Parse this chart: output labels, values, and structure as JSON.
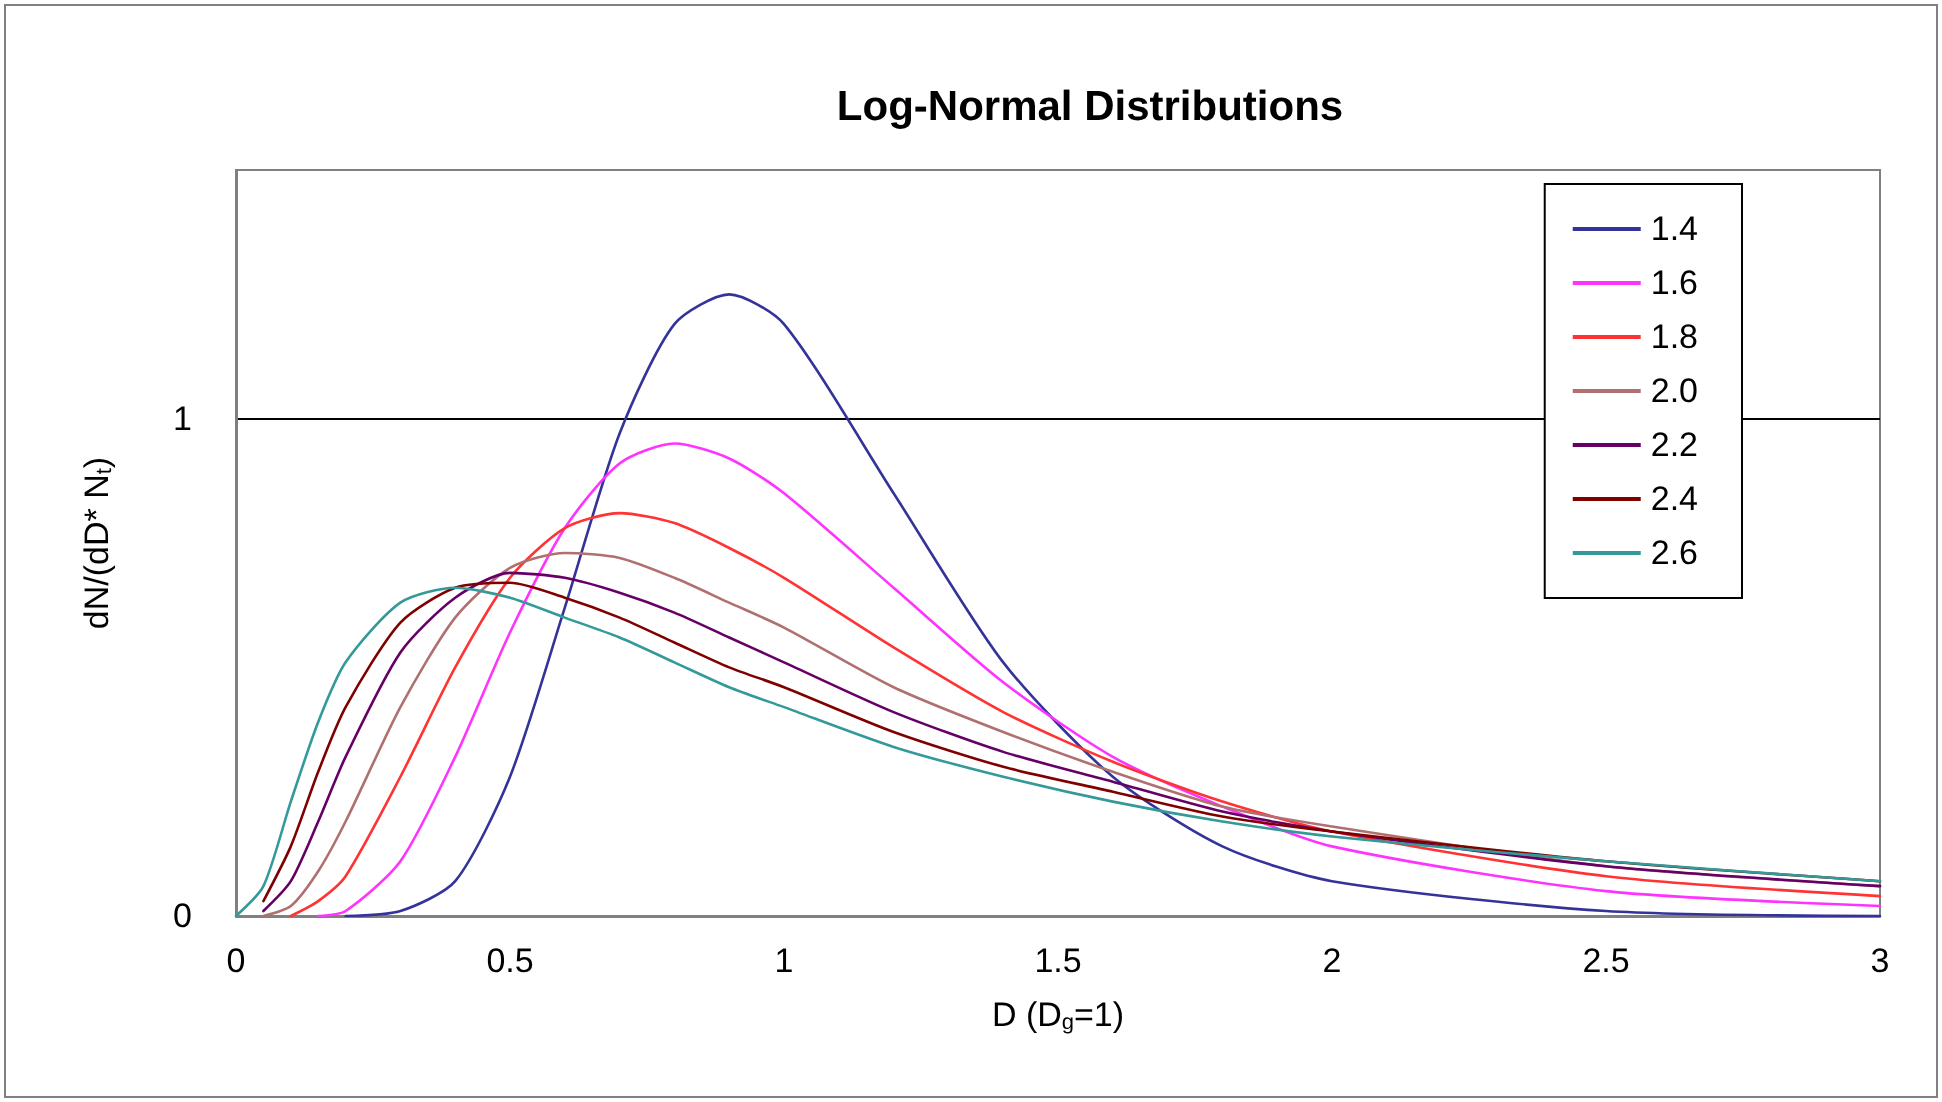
{
  "chart_data": {
    "type": "line",
    "title": "Log-Normal Distributions",
    "xlabel": "D (D$_{g}$=1)",
    "ylabel": "dN/(dD* N$_{t}$)",
    "x": [
      0,
      0.05,
      0.1,
      0.15,
      0.2,
      0.3,
      0.4,
      0.5,
      0.6,
      0.7,
      0.8,
      0.9,
      1.0,
      1.2,
      1.4,
      1.6,
      1.8,
      2.0,
      2.5,
      3.0
    ],
    "series": [
      {
        "name": "1.4",
        "color": "#333399",
        "values": [
          null,
          null,
          null,
          null,
          0,
          0.01,
          0.07,
          0.28,
          0.62,
          0.97,
          1.19,
          1.25,
          1.19,
          0.85,
          0.51,
          0.28,
          0.14,
          0.07,
          0.01,
          0
        ]
      },
      {
        "name": "1.6",
        "color": "#ff33ff",
        "values": [
          null,
          null,
          null,
          0,
          0.01,
          0.11,
          0.32,
          0.57,
          0.78,
          0.91,
          0.95,
          0.92,
          0.85,
          0.66,
          0.47,
          0.32,
          0.22,
          0.14,
          0.05,
          0.02
        ]
      },
      {
        "name": "1.8",
        "color": "#ff3333",
        "values": [
          null,
          null,
          0,
          0.03,
          0.08,
          0.28,
          0.5,
          0.68,
          0.78,
          0.81,
          0.79,
          0.74,
          0.68,
          0.54,
          0.41,
          0.31,
          0.23,
          0.17,
          0.08,
          0.04
        ]
      },
      {
        "name": "2.0",
        "color": "#b07070",
        "values": [
          null,
          0,
          0.02,
          0.09,
          0.19,
          0.42,
          0.6,
          0.7,
          0.73,
          0.72,
          0.68,
          0.63,
          0.58,
          0.46,
          0.37,
          0.29,
          0.22,
          0.18,
          0.1,
          0.06
        ]
      },
      {
        "name": "2.2",
        "color": "#660066",
        "values": [
          null,
          0.01,
          0.07,
          0.19,
          0.32,
          0.53,
          0.64,
          0.69,
          0.68,
          0.65,
          0.61,
          0.56,
          0.51,
          0.41,
          0.33,
          0.27,
          0.21,
          0.17,
          0.1,
          0.06
        ]
      },
      {
        "name": "2.4",
        "color": "#800000",
        "values": [
          null,
          0.03,
          0.14,
          0.29,
          0.42,
          0.59,
          0.66,
          0.67,
          0.64,
          0.6,
          0.55,
          0.5,
          0.46,
          0.37,
          0.3,
          0.25,
          0.2,
          0.17,
          0.11,
          0.07
        ]
      },
      {
        "name": "2.6",
        "color": "#339999",
        "values": [
          0,
          0.06,
          0.23,
          0.39,
          0.51,
          0.63,
          0.66,
          0.64,
          0.6,
          0.56,
          0.51,
          0.46,
          0.42,
          0.34,
          0.28,
          0.23,
          0.19,
          0.16,
          0.11,
          0.07
        ]
      }
    ],
    "xlim": [
      0,
      3
    ],
    "xticks": [
      0,
      0.5,
      1,
      1.5,
      2,
      2.5,
      3
    ],
    "ylim": [
      0,
      1.5
    ],
    "yticks": [
      0,
      1
    ],
    "grid": "y",
    "legend": "top right",
    "marker": "none",
    "line_style": "solid"
  }
}
